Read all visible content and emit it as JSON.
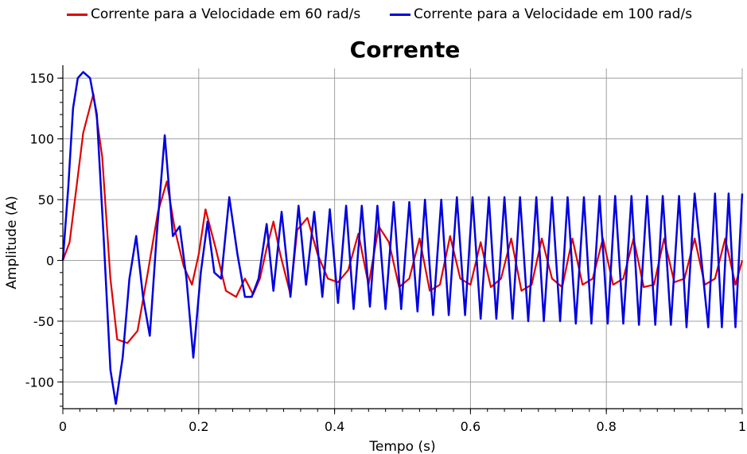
{
  "chart_data": {
    "type": "line",
    "title": "Corrente",
    "xlabel": "Tempo (s)",
    "ylabel": "Amplitude (A)",
    "xlim": [
      0,
      1
    ],
    "ylim": [
      -122,
      158
    ],
    "grid": true,
    "legend_position": "top",
    "x_ticks": [
      0,
      0.2,
      0.4,
      0.6,
      0.8,
      1
    ],
    "x_tick_labels": [
      "0",
      "0.2",
      "0.4",
      "0.6",
      "0.8",
      "1"
    ],
    "y_ticks": [
      -100,
      -50,
      0,
      50,
      100,
      150
    ],
    "y_tick_labels": [
      "-100",
      "-50",
      "0",
      "50",
      "100",
      "150"
    ],
    "series": [
      {
        "name": "Corrente para a Velocidade em 60 rad/s",
        "color": "#e00000",
        "x": [
          0,
          0.01,
          0.02,
          0.03,
          0.045,
          0.058,
          0.07,
          0.08,
          0.095,
          0.11,
          0.125,
          0.14,
          0.153,
          0.165,
          0.178,
          0.19,
          0.2,
          0.21,
          0.225,
          0.24,
          0.255,
          0.268,
          0.28,
          0.29,
          0.3,
          0.31,
          0.32,
          0.335,
          0.345,
          0.36,
          0.375,
          0.39,
          0.405,
          0.42,
          0.435,
          0.45,
          0.465,
          0.48,
          0.495,
          0.51,
          0.525,
          0.54,
          0.555,
          0.57,
          0.585,
          0.6,
          0.615,
          0.63,
          0.645,
          0.66,
          0.675,
          0.69,
          0.705,
          0.72,
          0.735,
          0.75,
          0.765,
          0.78,
          0.795,
          0.81,
          0.825,
          0.84,
          0.855,
          0.87,
          0.885,
          0.9,
          0.915,
          0.93,
          0.945,
          0.96,
          0.975,
          0.99,
          1.0
        ],
        "y": [
          0,
          15,
          60,
          105,
          137,
          85,
          -15,
          -65,
          -68,
          -58,
          -10,
          40,
          65,
          25,
          -5,
          -20,
          5,
          42,
          10,
          -25,
          -30,
          -15,
          -28,
          -15,
          10,
          32,
          5,
          -28,
          25,
          35,
          5,
          -15,
          -18,
          -8,
          22,
          -20,
          28,
          15,
          -22,
          -15,
          18,
          -25,
          -20,
          20,
          -15,
          -20,
          15,
          -22,
          -15,
          18,
          -25,
          -20,
          18,
          -15,
          -22,
          18,
          -20,
          -15,
          18,
          -20,
          -15,
          18,
          -22,
          -20,
          18,
          -18,
          -15,
          18,
          -20,
          -15,
          18,
          -20,
          0
        ]
      },
      {
        "name": "Corrente para a Velocidade em 100 rad/s",
        "color": "#0000e0",
        "x": [
          0,
          0.008,
          0.015,
          0.022,
          0.03,
          0.04,
          0.05,
          0.06,
          0.07,
          0.078,
          0.088,
          0.098,
          0.108,
          0.118,
          0.128,
          0.138,
          0.15,
          0.162,
          0.172,
          0.182,
          0.192,
          0.203,
          0.213,
          0.223,
          0.233,
          0.245,
          0.257,
          0.268,
          0.278,
          0.288,
          0.3,
          0.31,
          0.322,
          0.335,
          0.347,
          0.358,
          0.37,
          0.382,
          0.393,
          0.405,
          0.417,
          0.428,
          0.44,
          0.452,
          0.463,
          0.475,
          0.487,
          0.498,
          0.51,
          0.522,
          0.533,
          0.545,
          0.557,
          0.568,
          0.58,
          0.592,
          0.603,
          0.615,
          0.627,
          0.638,
          0.65,
          0.662,
          0.673,
          0.685,
          0.697,
          0.708,
          0.72,
          0.732,
          0.743,
          0.755,
          0.767,
          0.778,
          0.79,
          0.802,
          0.813,
          0.825,
          0.837,
          0.848,
          0.86,
          0.872,
          0.883,
          0.895,
          0.907,
          0.918,
          0.93,
          0.94,
          0.95,
          0.96,
          0.97,
          0.98,
          0.99,
          1.0
        ],
        "y": [
          0,
          60,
          125,
          150,
          155,
          150,
          120,
          20,
          -90,
          -118,
          -80,
          -15,
          20,
          -30,
          -62,
          20,
          103,
          20,
          28,
          -15,
          -80,
          -10,
          32,
          -10,
          -15,
          52,
          5,
          -30,
          -30,
          -15,
          30,
          -25,
          40,
          -30,
          45,
          -20,
          40,
          -30,
          42,
          -35,
          45,
          -40,
          45,
          -38,
          45,
          -40,
          48,
          -40,
          48,
          -42,
          50,
          -45,
          50,
          -45,
          52,
          -45,
          52,
          -48,
          52,
          -48,
          52,
          -48,
          52,
          -50,
          52,
          -50,
          52,
          -50,
          52,
          -52,
          52,
          -52,
          53,
          -52,
          53,
          -52,
          53,
          -53,
          53,
          -53,
          53,
          -53,
          53,
          -55,
          55,
          0,
          -55,
          55,
          -55,
          55,
          -55,
          55
        ]
      }
    ]
  }
}
